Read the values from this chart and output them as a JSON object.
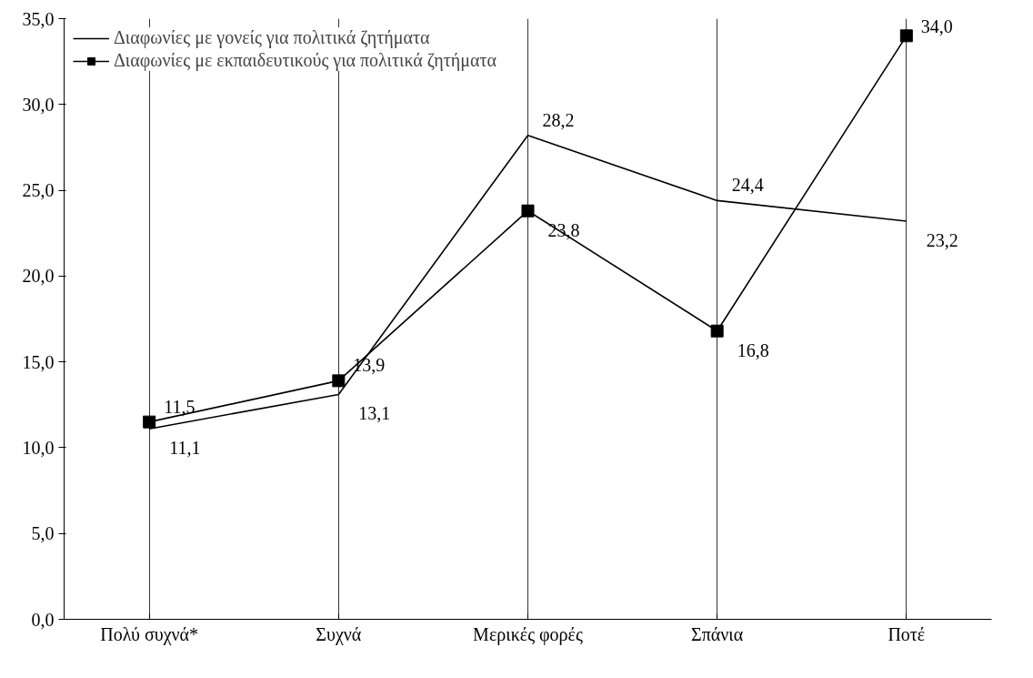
{
  "chart_data": {
    "type": "line",
    "categories": [
      "Πολύ συχνά*",
      "Συχνά",
      "Μερικές φορές",
      "Σπάνια",
      "Ποτέ"
    ],
    "series": [
      {
        "name": "Διαφωνίες με γονείς για πολιτικά ζητήματα",
        "color": "#000000",
        "marker": "none",
        "values": [
          11.1,
          13.1,
          28.2,
          24.4,
          23.2
        ],
        "value_labels": [
          "11,1",
          "13,1",
          "28,2",
          "24,4",
          "23,2"
        ]
      },
      {
        "name": "Διαφωνίες με εκπαιδευτικούς για πολιτικά ζητήματα",
        "color": "#000000",
        "marker": "square",
        "values": [
          11.5,
          13.9,
          23.8,
          16.8,
          34.0
        ],
        "value_labels": [
          "11,5",
          "13,9",
          "23,8",
          "16,8",
          "34,0"
        ]
      }
    ],
    "ylim": [
      0,
      35
    ],
    "yticks": [
      {
        "value": 0,
        "label": "0,0"
      },
      {
        "value": 5,
        "label": "5,0"
      },
      {
        "value": 10,
        "label": "10,0"
      },
      {
        "value": 15,
        "label": "15,0"
      },
      {
        "value": 20,
        "label": "20,0"
      },
      {
        "value": 25,
        "label": "25,0"
      },
      {
        "value": 30,
        "label": "30,0"
      },
      {
        "value": 35,
        "label": "35,0"
      }
    ],
    "grid": "x",
    "legend": "top left"
  }
}
